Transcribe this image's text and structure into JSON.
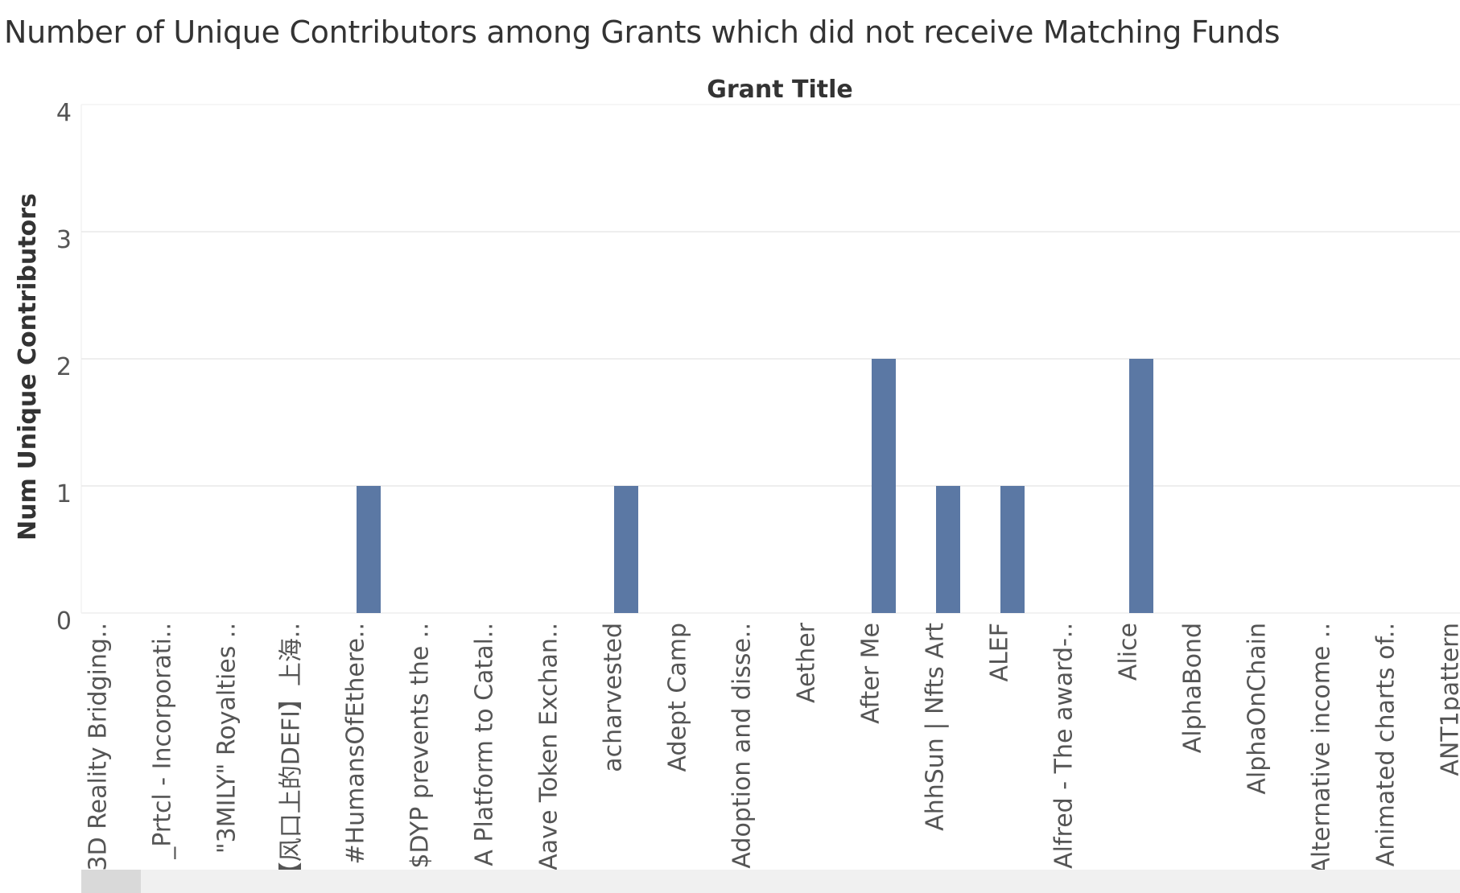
{
  "chart_data": {
    "type": "bar",
    "title": "Number of Unique Contributors among Grants which did not receive Matching Funds",
    "column_header": "Grant Title",
    "ylabel": "Num Unique Contributors",
    "ylim": [
      0,
      4
    ],
    "yticks": [
      0,
      1,
      2,
      3,
      4
    ],
    "grid": true,
    "bar_color": "#5b78a4",
    "categories": [
      "3D Reality Bridging..",
      "_Prtcl - Incorporati..",
      "\"3MILY\" Royalties ..",
      "【风口上的DEFI】上海..",
      "#HumansOfEthere..",
      "$DYP prevents the ..",
      "A Platform to Catal..",
      "Aave Token Exchan..",
      "acharvested",
      "Adept Camp",
      "Adoption and disse..",
      "Aether",
      "After Me",
      "AhhSun | Nfts Art",
      "ALEF",
      "Alfred - The award-..",
      "Alice",
      "AlphaBond",
      "AlphaOnChain",
      "Alternative income ..",
      "Animated charts of..",
      "ANT1pattern"
    ],
    "values": [
      0,
      0,
      0,
      0,
      1,
      0,
      0,
      0,
      1,
      0,
      0,
      0,
      2,
      1,
      1,
      0,
      2,
      0,
      0,
      0,
      0,
      0
    ]
  }
}
